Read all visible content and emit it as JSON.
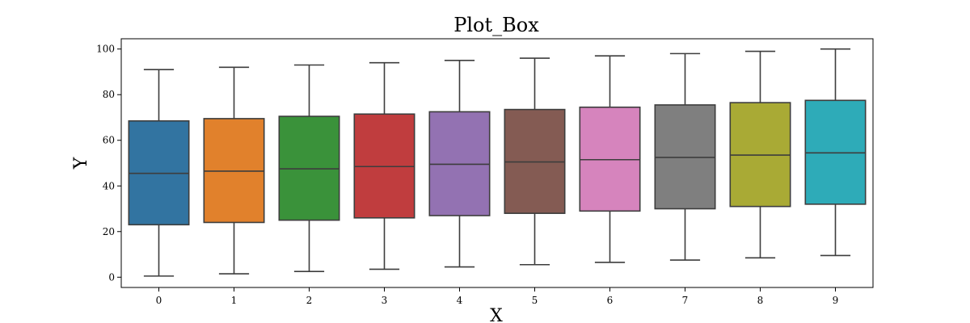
{
  "chart_data": {
    "type": "box",
    "title": "Plot_Box",
    "xlabel": "X",
    "ylabel": "Y",
    "ylim": [
      -4.5,
      104.5
    ],
    "yticks": [
      "0",
      "20",
      "40",
      "60",
      "80",
      "100"
    ],
    "grid": false,
    "categories": [
      "0",
      "1",
      "2",
      "3",
      "4",
      "5",
      "6",
      "7",
      "8",
      "9"
    ],
    "boxes": [
      {
        "category": "0",
        "whisker_low": 0.5,
        "q1": 23,
        "median": 45.5,
        "q3": 68.5,
        "whisker_high": 91,
        "color": "#3274a1"
      },
      {
        "category": "1",
        "whisker_low": 1.5,
        "q1": 24,
        "median": 46.5,
        "q3": 69.5,
        "whisker_high": 92,
        "color": "#e1812c"
      },
      {
        "category": "2",
        "whisker_low": 2.5,
        "q1": 25,
        "median": 47.5,
        "q3": 70.5,
        "whisker_high": 93,
        "color": "#3a923a"
      },
      {
        "category": "3",
        "whisker_low": 3.5,
        "q1": 26,
        "median": 48.5,
        "q3": 71.5,
        "whisker_high": 94,
        "color": "#c03d3e"
      },
      {
        "category": "4",
        "whisker_low": 4.5,
        "q1": 27,
        "median": 49.5,
        "q3": 72.5,
        "whisker_high": 95,
        "color": "#9372b2"
      },
      {
        "category": "5",
        "whisker_low": 5.5,
        "q1": 28,
        "median": 50.5,
        "q3": 73.5,
        "whisker_high": 96,
        "color": "#845b53"
      },
      {
        "category": "6",
        "whisker_low": 6.5,
        "q1": 29,
        "median": 51.5,
        "q3": 74.5,
        "whisker_high": 97,
        "color": "#d684bd"
      },
      {
        "category": "7",
        "whisker_low": 7.5,
        "q1": 30,
        "median": 52.5,
        "q3": 75.5,
        "whisker_high": 98,
        "color": "#7f7f7f"
      },
      {
        "category": "8",
        "whisker_low": 8.5,
        "q1": 31,
        "median": 53.5,
        "q3": 76.5,
        "whisker_high": 99,
        "color": "#a9aa35"
      },
      {
        "category": "9",
        "whisker_low": 9.5,
        "q1": 32,
        "median": 54.5,
        "q3": 77.5,
        "whisker_high": 100,
        "color": "#2eabb8"
      }
    ]
  }
}
